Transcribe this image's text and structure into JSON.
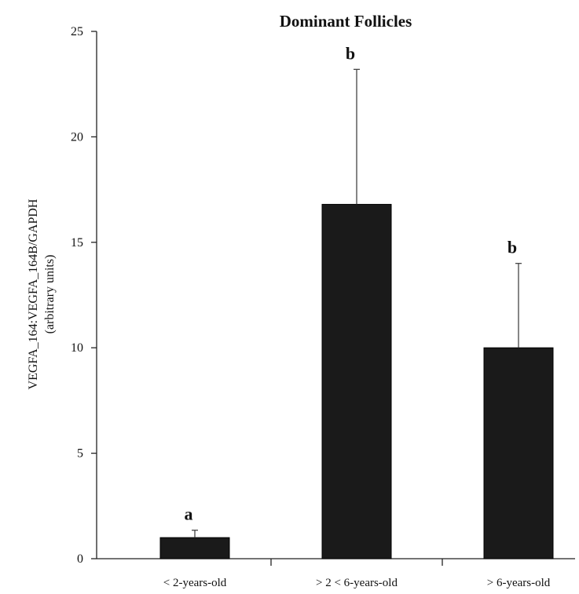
{
  "chart_data": {
    "type": "bar",
    "title": "Dominant Follicles",
    "ylabel_line1": "VEGFA_164:VEGFA_164B/GAPDH",
    "ylabel_line2": "(arbitrary units)",
    "xlabel": "",
    "ylim": [
      0,
      25
    ],
    "yticks": [
      0,
      5,
      10,
      15,
      20,
      25
    ],
    "categories": [
      "< 2-years-old",
      "> 2 < 6-years-old",
      "> 6-years-old"
    ],
    "values": [
      1.0,
      16.8,
      10.0
    ],
    "errors": [
      0.35,
      6.4,
      4.0
    ],
    "significance": [
      "a",
      "b",
      "b"
    ],
    "bar_color": "#1a1a1a",
    "grid": false,
    "legend": "none"
  }
}
